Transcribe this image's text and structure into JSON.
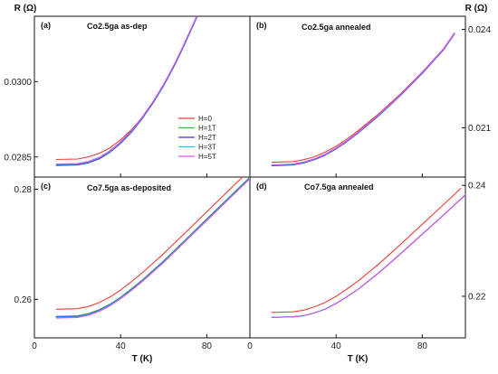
{
  "figure": {
    "y_unit_label": "R (Ω)",
    "x_axis_title": "T (K)"
  },
  "legend": {
    "entries": [
      {
        "label": "H=0",
        "color": "#e8413c"
      },
      {
        "label": "H=1T",
        "color": "#2fbf3f"
      },
      {
        "label": "H=2T",
        "color": "#3b3fd6"
      },
      {
        "label": "H=3T",
        "color": "#22c7d9"
      },
      {
        "label": "H=5T",
        "color": "#e04fe8"
      }
    ]
  },
  "chart_data": [
    {
      "type": "line",
      "panel": "(a)",
      "title": "Co2.5ga as-dep",
      "xlim": [
        0,
        100
      ],
      "ylim": [
        0.0281,
        0.0313
      ],
      "x_ticks": [
        "0",
        "40",
        "80"
      ],
      "y_ticks": [
        "0.0285",
        "0.0300"
      ],
      "y_tick_values": [
        0.0285,
        0.03
      ],
      "y_axis_side": "left",
      "x_tick_labels_shown": false,
      "series": [
        {
          "name": "H=0",
          "color": "#e8413c",
          "x": [
            10,
            20,
            25,
            30,
            35,
            40,
            45,
            50,
            55,
            60,
            65,
            70,
            76
          ],
          "y": [
            0.02845,
            0.02846,
            0.0285,
            0.02857,
            0.02868,
            0.02884,
            0.02904,
            0.02929,
            0.02959,
            0.02993,
            0.03032,
            0.03077,
            0.03135
          ]
        },
        {
          "name": "H=1T",
          "color": "#2fbf3f",
          "x": [
            10,
            20,
            25,
            30,
            35,
            40,
            45,
            50,
            55,
            60,
            65,
            70,
            76
          ],
          "y": [
            0.02834,
            0.02835,
            0.02839,
            0.02847,
            0.0286,
            0.02878,
            0.029,
            0.02927,
            0.02958,
            0.02993,
            0.03033,
            0.03078,
            0.03135
          ]
        },
        {
          "name": "H=2T",
          "color": "#3b3fd6",
          "x": [
            10,
            20,
            25,
            30,
            35,
            40,
            45,
            50,
            55,
            60,
            65,
            70,
            76
          ],
          "y": [
            0.02833,
            0.02834,
            0.02838,
            0.02846,
            0.02859,
            0.02877,
            0.02899,
            0.02926,
            0.02957,
            0.02992,
            0.03032,
            0.03077,
            0.03134
          ]
        },
        {
          "name": "H=3T",
          "color": "#22c7d9",
          "x": [
            10,
            20,
            25,
            30,
            35,
            40,
            45,
            50,
            55,
            60,
            65,
            70,
            76
          ],
          "y": [
            0.02835,
            0.02836,
            0.0284,
            0.02848,
            0.02861,
            0.02879,
            0.02901,
            0.02928,
            0.02959,
            0.02994,
            0.03034,
            0.03079,
            0.03136
          ]
        },
        {
          "name": "H=5T",
          "color": "#e04fe8",
          "x": [
            10,
            20,
            25,
            30,
            35,
            40,
            45,
            50,
            55,
            60,
            65,
            70,
            76
          ],
          "y": [
            0.02836,
            0.02837,
            0.02841,
            0.02849,
            0.02862,
            0.0288,
            0.02902,
            0.02929,
            0.0296,
            0.02995,
            0.03035,
            0.0308,
            0.03137
          ]
        }
      ]
    },
    {
      "type": "line",
      "panel": "(b)",
      "title": "Co2.5ga annealed",
      "xlim": [
        0,
        100
      ],
      "ylim": [
        0.0195,
        0.0244
      ],
      "x_ticks": [
        "0",
        "40",
        "80"
      ],
      "y_ticks": [
        "0.021",
        "0.024"
      ],
      "y_tick_values": [
        0.021,
        0.024
      ],
      "y_axis_side": "right",
      "x_tick_labels_shown": false,
      "series": [
        {
          "name": "H=0",
          "color": "#e8413c",
          "x": [
            10,
            20,
            25,
            30,
            35,
            40,
            45,
            50,
            60,
            70,
            80,
            90,
            95
          ],
          "y": [
            0.01995,
            0.01997,
            0.02003,
            0.02012,
            0.02026,
            0.02044,
            0.02066,
            0.0209,
            0.02144,
            0.02204,
            0.0227,
            0.02342,
            0.0239
          ]
        },
        {
          "name": "H=1T",
          "color": "#2fbf3f",
          "x": [
            10,
            20,
            25,
            30,
            35,
            40,
            45,
            50,
            60,
            70,
            80,
            90,
            95
          ],
          "y": [
            0.01985,
            0.01988,
            0.01994,
            0.02004,
            0.02018,
            0.02037,
            0.02059,
            0.02084,
            0.02139,
            0.022,
            0.02267,
            0.0234,
            0.02388
          ]
        },
        {
          "name": "H=2T",
          "color": "#3b3fd6",
          "x": [
            10,
            20,
            25,
            30,
            35,
            40,
            45,
            50,
            60,
            70,
            80,
            90,
            95
          ],
          "y": [
            0.01984,
            0.01987,
            0.01993,
            0.02003,
            0.02017,
            0.02036,
            0.02058,
            0.02083,
            0.02138,
            0.02199,
            0.02266,
            0.02339,
            0.02387
          ]
        },
        {
          "name": "H=3T",
          "color": "#22c7d9",
          "x": [
            10,
            20,
            25,
            30,
            35,
            40,
            45,
            50,
            60,
            70,
            80,
            90,
            95
          ],
          "y": [
            0.01986,
            0.01989,
            0.01995,
            0.02005,
            0.02019,
            0.02038,
            0.0206,
            0.02085,
            0.0214,
            0.02201,
            0.02268,
            0.02341,
            0.02389
          ]
        },
        {
          "name": "H=5T",
          "color": "#e04fe8",
          "x": [
            10,
            20,
            25,
            30,
            35,
            40,
            45,
            50,
            60,
            70,
            80,
            90,
            95
          ],
          "y": [
            0.01987,
            0.0199,
            0.01996,
            0.02006,
            0.0202,
            0.02039,
            0.02061,
            0.02086,
            0.02141,
            0.02202,
            0.02269,
            0.02342,
            0.0239
          ]
        }
      ]
    },
    {
      "type": "line",
      "panel": "(c)",
      "title": "Co7.5ga as-deposited",
      "xlim": [
        0,
        100
      ],
      "ylim": [
        0.253,
        0.2822
      ],
      "x_ticks": [
        "0",
        "40",
        "80"
      ],
      "y_ticks": [
        "0.26",
        "0.28"
      ],
      "y_tick_values": [
        0.26,
        0.28
      ],
      "y_axis_side": "left",
      "x_tick_labels_shown": true,
      "series": [
        {
          "name": "H=0",
          "color": "#e8413c",
          "x": [
            10,
            20,
            25,
            30,
            35,
            40,
            45,
            50,
            60,
            70,
            80,
            90,
            100
          ],
          "y": [
            0.2582,
            0.2583,
            0.2587,
            0.2594,
            0.2604,
            0.2617,
            0.2632,
            0.2648,
            0.2683,
            0.2721,
            0.2759,
            0.2797,
            0.2835
          ]
        },
        {
          "name": "H=1T",
          "color": "#2fbf3f",
          "x": [
            10,
            20,
            25,
            30,
            35,
            40,
            45,
            50,
            60,
            70,
            80,
            90,
            100
          ],
          "y": [
            0.2569,
            0.257,
            0.2574,
            0.2581,
            0.2591,
            0.2604,
            0.2619,
            0.2635,
            0.267,
            0.2708,
            0.2746,
            0.2784,
            0.2822
          ]
        },
        {
          "name": "H=2T",
          "color": "#3b3fd6",
          "x": [
            10,
            20,
            25,
            30,
            35,
            40,
            45,
            50,
            60,
            70,
            80,
            90,
            100
          ],
          "y": [
            0.2568,
            0.2569,
            0.2573,
            0.258,
            0.259,
            0.2603,
            0.2618,
            0.2634,
            0.2669,
            0.2707,
            0.2745,
            0.2783,
            0.2821
          ]
        },
        {
          "name": "H=3T",
          "color": "#22c7d9",
          "x": [
            10,
            20,
            25,
            30,
            35,
            40,
            45,
            50,
            60,
            70,
            80,
            90,
            100
          ],
          "y": [
            0.2567,
            0.2568,
            0.2572,
            0.2579,
            0.2589,
            0.2602,
            0.2617,
            0.2633,
            0.2668,
            0.2706,
            0.2744,
            0.2782,
            0.282
          ]
        },
        {
          "name": "H=5T",
          "color": "#e04fe8",
          "x": [
            10,
            20,
            25,
            30,
            35,
            40,
            45,
            50,
            60,
            70,
            80,
            90,
            100
          ],
          "y": [
            0.2566,
            0.2567,
            0.2571,
            0.2578,
            0.2588,
            0.2601,
            0.2616,
            0.2632,
            0.2667,
            0.2705,
            0.2743,
            0.2781,
            0.2819
          ]
        }
      ]
    },
    {
      "type": "line",
      "panel": "(d)",
      "title": "Co7.5ga annealed",
      "xlim": [
        0,
        100
      ],
      "ylim": [
        0.2125,
        0.2415
      ],
      "x_ticks": [
        "0",
        "40",
        "80"
      ],
      "y_ticks": [
        "0.22",
        "0.24"
      ],
      "y_tick_values": [
        0.22,
        0.24
      ],
      "y_axis_side": "right",
      "x_tick_labels_shown": true,
      "series": [
        {
          "name": "H=0",
          "color": "#e8413c",
          "x": [
            10,
            20,
            25,
            30,
            35,
            40,
            45,
            50,
            60,
            70,
            80,
            90,
            98
          ],
          "y": [
            0.2171,
            0.2172,
            0.2175,
            0.2181,
            0.2189,
            0.22,
            0.2213,
            0.2227,
            0.2259,
            0.2294,
            0.233,
            0.2366,
            0.2395
          ]
        },
        {
          "name": "H=1T",
          "color": "#2fbf3f",
          "x": [
            10,
            20,
            25,
            30,
            35,
            40,
            45,
            50,
            60,
            70,
            80,
            90,
            100
          ],
          "y": [
            0.2162,
            0.2163,
            0.2165,
            0.217,
            0.2177,
            0.2187,
            0.2199,
            0.2212,
            0.2243,
            0.2277,
            0.2312,
            0.2347,
            0.2383
          ]
        },
        {
          "name": "H=2T",
          "color": "#3b3fd6",
          "x": [
            10,
            20,
            25,
            30,
            35,
            40,
            45,
            50,
            60,
            70,
            80,
            90,
            100
          ],
          "y": [
            0.2162,
            0.2163,
            0.2165,
            0.217,
            0.2177,
            0.2187,
            0.2199,
            0.2212,
            0.2243,
            0.2277,
            0.2312,
            0.2347,
            0.2383
          ]
        },
        {
          "name": "H=3T",
          "color": "#22c7d9",
          "x": [
            10,
            20,
            25,
            30,
            35,
            40,
            45,
            50,
            60,
            70,
            80,
            90,
            100
          ],
          "y": [
            0.2162,
            0.2163,
            0.2165,
            0.217,
            0.2177,
            0.2187,
            0.2199,
            0.2212,
            0.2243,
            0.2277,
            0.2312,
            0.2347,
            0.2383
          ]
        },
        {
          "name": "H=5T",
          "color": "#e04fe8",
          "x": [
            10,
            20,
            25,
            30,
            35,
            40,
            45,
            50,
            60,
            70,
            80,
            90,
            100
          ],
          "y": [
            0.2162,
            0.2163,
            0.2165,
            0.217,
            0.2177,
            0.2187,
            0.2199,
            0.2212,
            0.2243,
            0.2277,
            0.2312,
            0.2347,
            0.2383
          ]
        }
      ]
    }
  ]
}
